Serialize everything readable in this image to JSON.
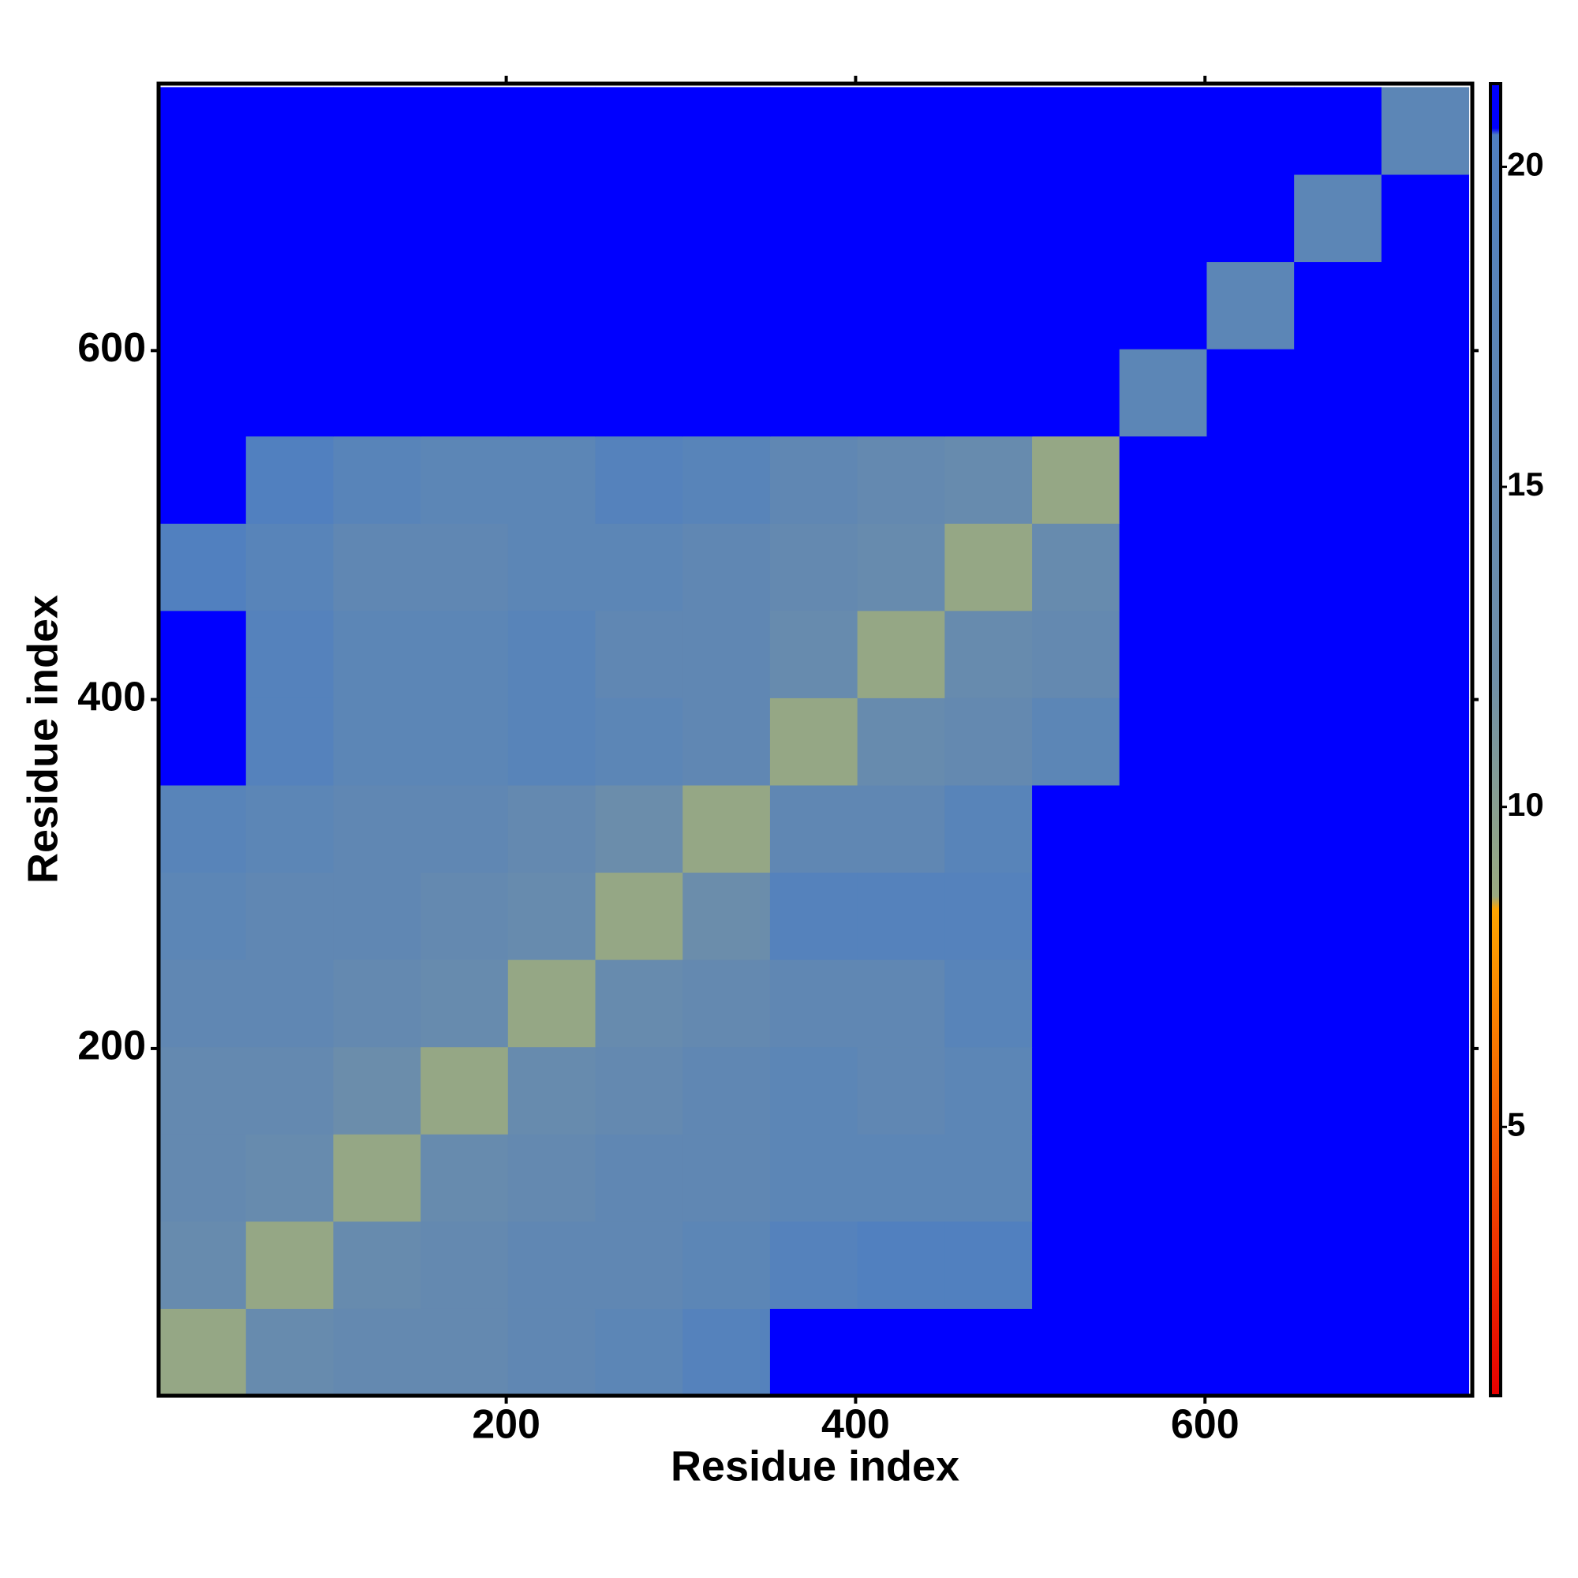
{
  "chart_data": {
    "type": "heatmap",
    "x_label": "Residue index",
    "y_label": "Residue index",
    "xlim": [
      1,
      753
    ],
    "ylim": [
      1,
      753
    ],
    "xticks": [
      200,
      400,
      600
    ],
    "yticks": [
      200,
      400,
      600
    ],
    "xbins": [
      1,
      51,
      101,
      151,
      201,
      251,
      301,
      351,
      401,
      451,
      501,
      551,
      601,
      651,
      701,
      751
    ],
    "ybins": [
      1,
      51,
      101,
      151,
      201,
      251,
      301,
      351,
      401,
      451,
      501,
      551,
      601,
      651,
      701,
      751
    ],
    "z": [
      [
        9,
        14,
        15,
        15,
        16,
        17,
        19,
        21,
        21,
        21,
        21,
        21,
        21,
        21,
        21
      ],
      [
        14,
        9,
        14,
        15,
        16,
        16,
        17,
        19,
        20,
        20,
        21,
        21,
        21,
        21,
        21
      ],
      [
        15,
        14,
        9,
        14,
        15,
        16,
        16,
        17,
        17,
        17,
        21,
        21,
        21,
        21,
        21
      ],
      [
        15,
        15,
        13,
        9,
        14,
        15,
        16,
        17,
        16,
        17,
        21,
        21,
        21,
        21,
        21
      ],
      [
        16,
        16,
        15,
        14,
        9,
        14,
        15,
        16,
        16,
        18,
        21,
        21,
        21,
        21,
        21
      ],
      [
        17,
        16,
        16,
        15,
        14,
        9,
        13,
        19,
        19,
        19,
        21,
        21,
        21,
        21,
        21
      ],
      [
        18,
        17,
        16,
        16,
        15,
        13,
        9,
        16,
        16,
        18,
        21,
        21,
        21,
        21,
        21
      ],
      [
        21,
        19,
        17,
        17,
        18,
        17,
        16,
        9,
        14,
        15,
        17,
        21,
        21,
        21,
        21
      ],
      [
        21,
        19,
        17,
        17,
        18,
        16,
        16,
        14,
        9,
        14,
        15,
        21,
        21,
        21,
        21
      ],
      [
        20,
        18,
        16,
        16,
        17,
        17,
        16,
        15,
        14,
        9,
        14,
        21,
        21,
        21,
        21
      ],
      [
        21,
        20,
        18,
        17,
        17,
        19,
        18,
        16,
        15,
        14,
        9,
        21,
        21,
        21,
        21
      ],
      [
        21,
        21,
        21,
        21,
        21,
        21,
        21,
        21,
        21,
        21,
        21,
        17,
        21,
        21,
        21
      ],
      [
        21,
        21,
        21,
        21,
        21,
        21,
        21,
        21,
        21,
        21,
        21,
        21,
        17,
        21,
        21
      ],
      [
        21,
        21,
        21,
        21,
        21,
        21,
        21,
        21,
        21,
        21,
        21,
        21,
        21,
        17,
        21
      ],
      [
        21,
        21,
        21,
        21,
        21,
        21,
        21,
        21,
        21,
        21,
        21,
        21,
        21,
        21,
        17
      ]
    ],
    "colorscale": [
      [
        0.8,
        "#e60000"
      ],
      [
        8.4,
        "#ffa500"
      ],
      [
        8.6,
        "#9aaa80"
      ],
      [
        12,
        "#6f8fa8"
      ],
      [
        20.5,
        "#4f7fc0"
      ],
      [
        20.6,
        "#0000ff"
      ],
      [
        21.3,
        "#0000ff"
      ]
    ],
    "colorbar_lim": [
      0.8,
      21.3
    ],
    "colorbar_ticks": [
      5,
      10,
      15,
      20
    ]
  }
}
